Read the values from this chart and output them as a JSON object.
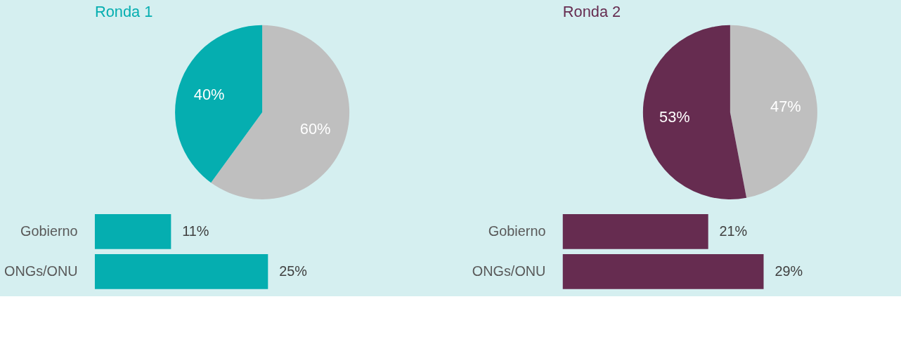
{
  "chart_data": [
    {
      "type": "pie",
      "title": "Ronda 1",
      "categories": [
        null,
        null
      ],
      "values": [
        60,
        40
      ],
      "colors": [
        "#bfbfbf",
        "#05aeb0"
      ],
      "value_labels": [
        "60%",
        "40%"
      ]
    },
    {
      "type": "bar",
      "orientation": "horizontal",
      "categories": [
        "Gobierno",
        "ONGs/ONU"
      ],
      "values": [
        11,
        25
      ],
      "color": "#05aeb0",
      "value_labels": [
        "11%",
        "25%"
      ]
    },
    {
      "type": "pie",
      "title": "Ronda 2",
      "categories": [
        null,
        null
      ],
      "values": [
        47,
        53
      ],
      "colors": [
        "#bfbfbf",
        "#662c50"
      ],
      "value_labels": [
        "47%",
        "53%"
      ]
    },
    {
      "type": "bar",
      "orientation": "horizontal",
      "categories": [
        "Gobierno",
        "ONGs/ONU"
      ],
      "values": [
        21,
        29
      ],
      "color": "#662c50",
      "value_labels": [
        "21%",
        "29%"
      ]
    }
  ]
}
